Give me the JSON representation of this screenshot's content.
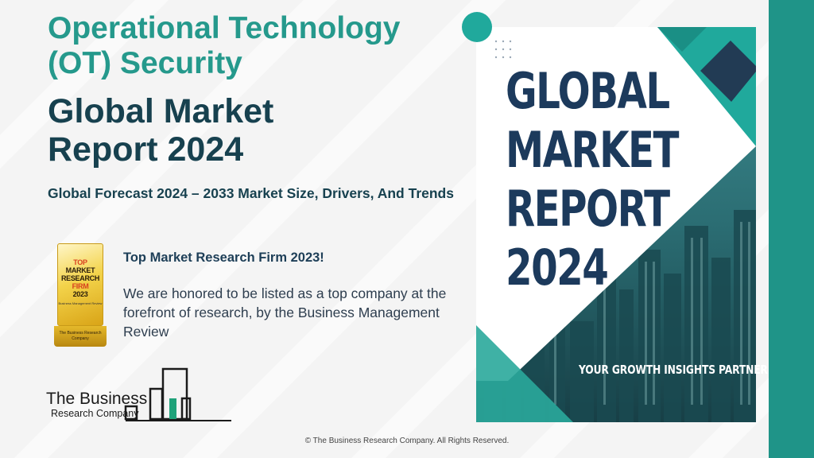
{
  "header": {
    "title_ot_line1": "Operational Technology",
    "title_ot_line2": "(OT) Security",
    "title_main_line1": "Global Market",
    "title_main_line2": "Report 2024",
    "subtitle": "Global Forecast 2024 – 2033 Market Size, Drivers, And Trends"
  },
  "award": {
    "badge_line1": "TOP",
    "badge_line2": "MARKET",
    "badge_line3": "RESEARCH",
    "badge_line4": "FIRM",
    "badge_line5": "2023",
    "badge_mini": "Business Management Review",
    "badge_base": "The Business Research Company",
    "heading": "Top Market Research Firm 2023!",
    "description": "We are honored to be listed as a top company at the forefront of research, by the Business Management Review"
  },
  "logo": {
    "name": "The Business",
    "sub": "Research Company"
  },
  "cover": {
    "line1": "GLOBAL",
    "line2": "MARKET",
    "line3": "REPORT",
    "line4": "2024",
    "tagline": "YOUR GROWTH INSIGHTS PARTNER"
  },
  "footer": {
    "copyright": "© The Business Research Company. All Rights Reserved."
  },
  "colors": {
    "accent_teal": "#25998c",
    "navy": "#17414f",
    "band": "#1f9488"
  }
}
